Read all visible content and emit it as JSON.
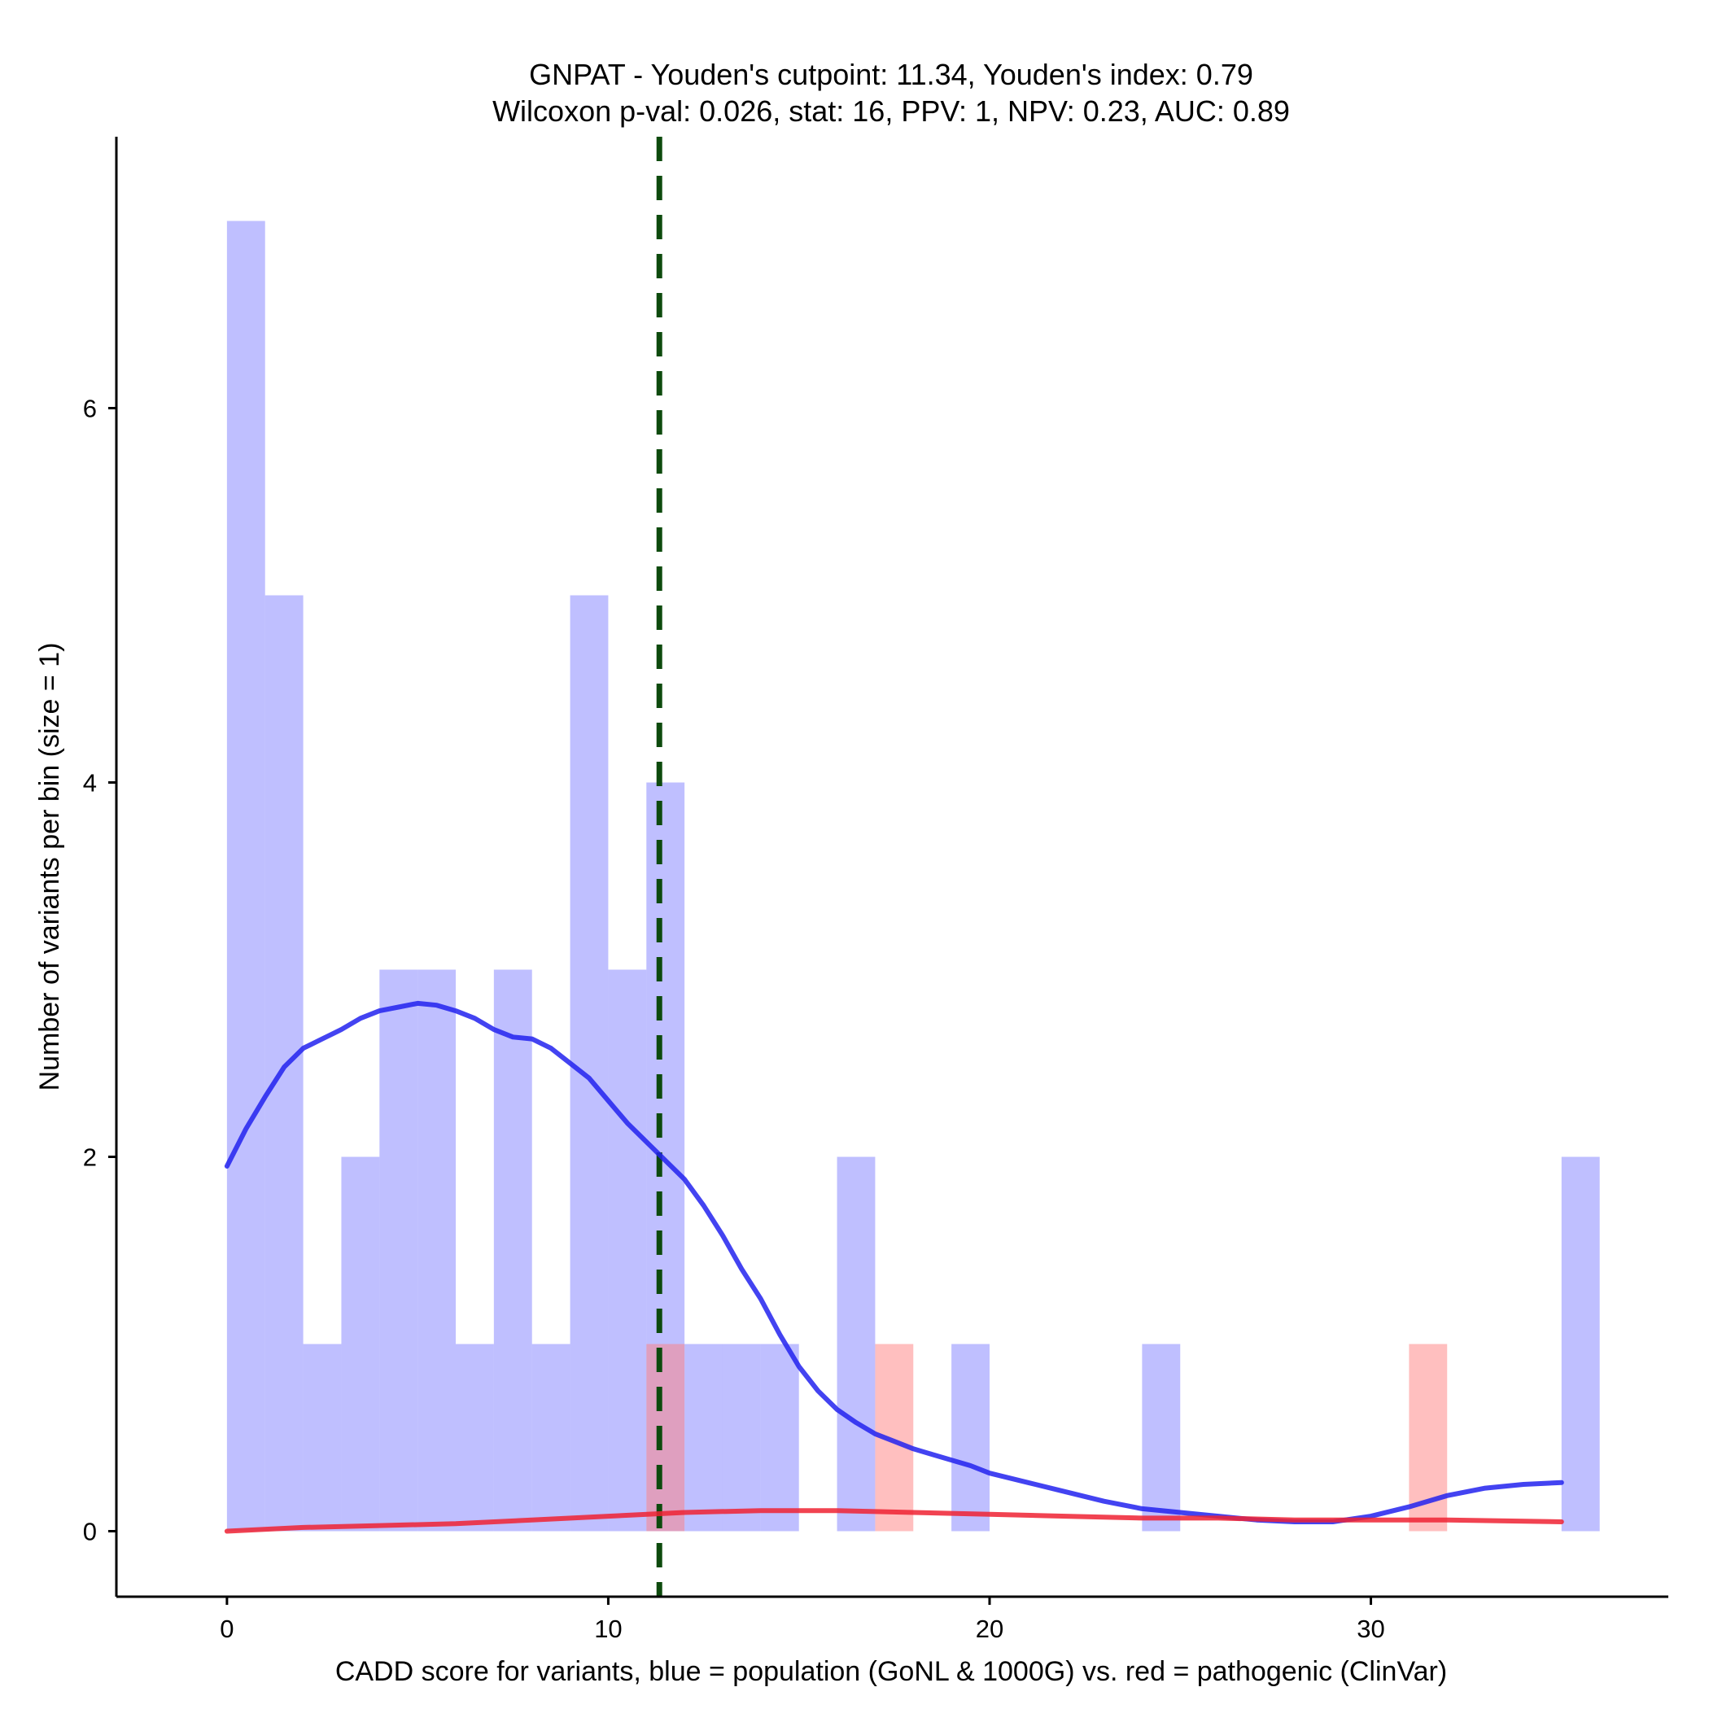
{
  "chart_data": {
    "type": "bar",
    "title_line1": "GNPAT - Youden's cutpoint: 11.34, Youden's index: 0.79",
    "title_line2": "Wilcoxon p-val: 0.026, stat: 16, PPV: 1, NPV: 0.23, AUC: 0.89",
    "xlabel": "CADD score for variants, blue = population (GoNL & 1000G) vs. red = pathogenic (ClinVar)",
    "ylabel": "Number of variants per bin (size = 1)",
    "xlim": [
      -2.9,
      37.8
    ],
    "ylim": [
      -0.35,
      7.45
    ],
    "x_ticks": [
      0,
      10,
      20,
      30
    ],
    "y_ticks": [
      0,
      2,
      4,
      6
    ],
    "bin_size": 1,
    "cutpoint": 11.34,
    "colors": {
      "population": "#8080ff",
      "pathogenic": "#ff7f7f",
      "population_line": "#2222ee",
      "pathogenic_line": "#ee2233",
      "cutpoint": "#0d4a0d"
    },
    "series": [
      {
        "name": "population (GoNL & 1000G)",
        "bins": [
          {
            "start": 0,
            "count": 7
          },
          {
            "start": 1,
            "count": 5
          },
          {
            "start": 2,
            "count": 1
          },
          {
            "start": 3,
            "count": 2
          },
          {
            "start": 4,
            "count": 3
          },
          {
            "start": 5,
            "count": 3
          },
          {
            "start": 6,
            "count": 1
          },
          {
            "start": 7,
            "count": 3
          },
          {
            "start": 8,
            "count": 1
          },
          {
            "start": 9,
            "count": 5
          },
          {
            "start": 10,
            "count": 3
          },
          {
            "start": 11,
            "count": 4
          },
          {
            "start": 12,
            "count": 1
          },
          {
            "start": 13,
            "count": 1
          },
          {
            "start": 14,
            "count": 1
          },
          {
            "start": 16,
            "count": 2
          },
          {
            "start": 19,
            "count": 1
          },
          {
            "start": 24,
            "count": 1
          },
          {
            "start": 35,
            "count": 2
          }
        ],
        "density": [
          [
            0,
            1.95
          ],
          [
            0.5,
            2.15
          ],
          [
            1,
            2.32
          ],
          [
            1.5,
            2.48
          ],
          [
            2,
            2.58
          ],
          [
            2.5,
            2.63
          ],
          [
            3,
            2.68
          ],
          [
            3.5,
            2.74
          ],
          [
            4,
            2.78
          ],
          [
            4.5,
            2.8
          ],
          [
            5,
            2.82
          ],
          [
            5.5,
            2.81
          ],
          [
            6,
            2.78
          ],
          [
            6.5,
            2.74
          ],
          [
            7,
            2.68
          ],
          [
            7.5,
            2.64
          ],
          [
            8,
            2.63
          ],
          [
            8.5,
            2.58
          ],
          [
            9,
            2.5
          ],
          [
            9.5,
            2.42
          ],
          [
            10,
            2.3
          ],
          [
            10.5,
            2.18
          ],
          [
            11,
            2.08
          ],
          [
            11.5,
            1.98
          ],
          [
            12,
            1.88
          ],
          [
            12.5,
            1.74
          ],
          [
            13,
            1.58
          ],
          [
            13.5,
            1.4
          ],
          [
            14,
            1.24
          ],
          [
            14.5,
            1.05
          ],
          [
            15,
            0.88
          ],
          [
            15.5,
            0.75
          ],
          [
            16,
            0.65
          ],
          [
            16.5,
            0.58
          ],
          [
            17,
            0.52
          ],
          [
            17.5,
            0.48
          ],
          [
            18,
            0.44
          ],
          [
            18.5,
            0.41
          ],
          [
            19,
            0.38
          ],
          [
            19.5,
            0.35
          ],
          [
            20,
            0.31
          ],
          [
            21,
            0.26
          ],
          [
            22,
            0.21
          ],
          [
            23,
            0.16
          ],
          [
            24,
            0.12
          ],
          [
            25,
            0.1
          ],
          [
            26,
            0.08
          ],
          [
            27,
            0.06
          ],
          [
            28,
            0.05
          ],
          [
            29,
            0.05
          ],
          [
            30,
            0.08
          ],
          [
            31,
            0.13
          ],
          [
            32,
            0.19
          ],
          [
            33,
            0.23
          ],
          [
            34,
            0.25
          ],
          [
            35,
            0.26
          ]
        ]
      },
      {
        "name": "pathogenic (ClinVar)",
        "bins": [
          {
            "start": 11,
            "count": 1
          },
          {
            "start": 17,
            "count": 1
          },
          {
            "start": 31,
            "count": 1
          }
        ],
        "density": [
          [
            0,
            0.0
          ],
          [
            2,
            0.02
          ],
          [
            4,
            0.03
          ],
          [
            6,
            0.04
          ],
          [
            8,
            0.06
          ],
          [
            10,
            0.08
          ],
          [
            12,
            0.1
          ],
          [
            14,
            0.11
          ],
          [
            16,
            0.11
          ],
          [
            18,
            0.1
          ],
          [
            20,
            0.09
          ],
          [
            22,
            0.08
          ],
          [
            24,
            0.07
          ],
          [
            26,
            0.07
          ],
          [
            28,
            0.06
          ],
          [
            30,
            0.06
          ],
          [
            32,
            0.06
          ],
          [
            35,
            0.05
          ]
        ]
      }
    ]
  }
}
